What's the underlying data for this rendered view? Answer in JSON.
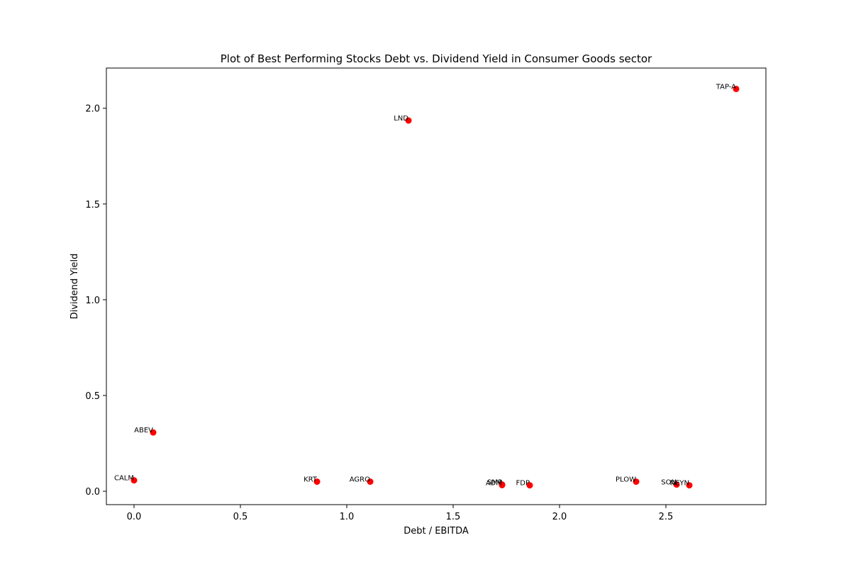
{
  "chart_data": {
    "type": "scatter",
    "title": "Plot of Best Performing Stocks Debt vs. Dividend Yield in Consumer Goods sector",
    "xlabel": "Debt / EBITDA",
    "ylabel": "Dividend Yield",
    "xlim": [
      -0.13,
      2.97
    ],
    "ylim": [
      -0.07,
      2.21
    ],
    "xticks": [
      0.0,
      0.5,
      1.0,
      1.5,
      2.0,
      2.5
    ],
    "xtick_labels": [
      "0.0",
      "0.5",
      "1.0",
      "1.5",
      "2.0",
      "2.5"
    ],
    "yticks": [
      0.0,
      0.5,
      1.0,
      1.5,
      2.0
    ],
    "ytick_labels": [
      "0.0",
      "0.5",
      "1.0",
      "1.5",
      "2.0"
    ],
    "grid": false,
    "marker_color": "#ff0000",
    "points": [
      {
        "label": "CALM",
        "x": 0.0,
        "y": 0.057
      },
      {
        "label": "ABEV",
        "x": 0.09,
        "y": 0.307
      },
      {
        "label": "KRT",
        "x": 0.86,
        "y": 0.05
      },
      {
        "label": "AGRO",
        "x": 1.11,
        "y": 0.05
      },
      {
        "label": "LND",
        "x": 1.29,
        "y": 1.936
      },
      {
        "label": "SMP",
        "x": 1.73,
        "y": 0.035
      },
      {
        "label": "ADM",
        "x": 1.73,
        "y": 0.032
      },
      {
        "label": "FDP",
        "x": 1.86,
        "y": 0.031
      },
      {
        "label": "PLOW",
        "x": 2.36,
        "y": 0.05
      },
      {
        "label": "SON",
        "x": 2.55,
        "y": 0.035
      },
      {
        "label": "NEYN",
        "x": 2.61,
        "y": 0.031
      },
      {
        "label": "TAP-A",
        "x": 2.83,
        "y": 2.101
      }
    ]
  }
}
